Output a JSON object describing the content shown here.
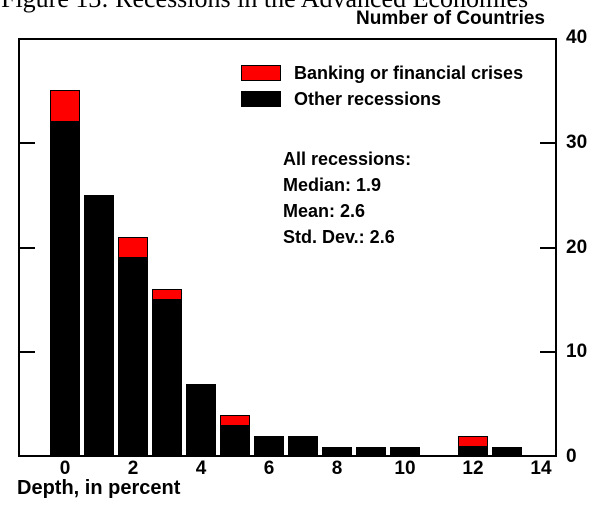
{
  "title": "Figure 13: Recessions in the Advanced Economies",
  "axis": {
    "y_title": "Number of Countries",
    "x_title": "Depth, in percent",
    "y_ticks": [
      {
        "label": "40",
        "value": 40
      },
      {
        "label": "30",
        "value": 30
      },
      {
        "label": "20",
        "value": 20
      },
      {
        "label": "10",
        "value": 10
      },
      {
        "label": "0",
        "value": 0
      }
    ],
    "y_minor_tick_values": [
      10,
      20,
      30
    ],
    "x_ticks": [
      {
        "label": "0",
        "value": 0
      },
      {
        "label": "2",
        "value": 2
      },
      {
        "label": "4",
        "value": 4
      },
      {
        "label": "6",
        "value": 6
      },
      {
        "label": "8",
        "value": 8
      },
      {
        "label": "10",
        "value": 10
      },
      {
        "label": "12",
        "value": 12
      },
      {
        "label": "14",
        "value": 14
      }
    ]
  },
  "legend": [
    {
      "label": "Banking or financial crises",
      "color": "#ff0000"
    },
    {
      "label": "Other recessions",
      "color": "#000000"
    }
  ],
  "stats": {
    "heading": "All recessions:",
    "median": "Median: 1.9",
    "mean": "Mean: 2.6",
    "stddev": "Std. Dev.: 2.6"
  },
  "colors": {
    "crisis_red": "#ff0000",
    "recession_black": "#000000",
    "background": "#ffffff"
  },
  "chart_data": {
    "type": "bar",
    "stacked": true,
    "title": "Figure 13: Recessions in the Advanced Economies",
    "xlabel": "Depth, in percent",
    "ylabel": "Number of Countries",
    "x": [
      0,
      1,
      2,
      3,
      4,
      5,
      6,
      7,
      8,
      9,
      10,
      11,
      12,
      13
    ],
    "series": [
      {
        "name": "Other recessions",
        "color": "#000000",
        "values": [
          32,
          25,
          19,
          15,
          7,
          3,
          2,
          2,
          1,
          1,
          1,
          0,
          1,
          1
        ]
      },
      {
        "name": "Banking or financial crises",
        "color": "#ff0000",
        "values": [
          3,
          0,
          2,
          1,
          0,
          1,
          0,
          0,
          0,
          0,
          0,
          0,
          1,
          0
        ]
      }
    ],
    "totals": [
      35,
      25,
      21,
      16,
      7,
      4,
      2,
      2,
      1,
      1,
      1,
      0,
      2,
      1
    ],
    "ylim": [
      0,
      40
    ],
    "xlim": [
      -1.4,
      14.5
    ],
    "grid": false,
    "legend_position": "upper-center-inside",
    "annotations": [
      "All recessions:",
      "Median: 1.9",
      "Mean: 2.6",
      "Std. Dev.: 2.6"
    ]
  }
}
